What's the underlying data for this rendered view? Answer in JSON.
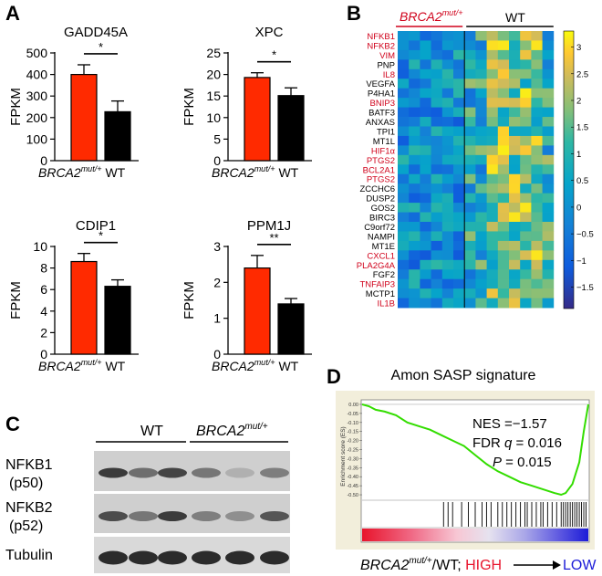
{
  "panels": {
    "A": "A",
    "B": "B",
    "C": "C",
    "D": "D"
  },
  "bar_charts": {
    "ylabel": "FPKM",
    "xlabel_mut_base": "BRCA2",
    "xlabel_mut_sup": "mut/+",
    "xlabel_wt": "WT",
    "colors": {
      "mut": "#ff2a00",
      "wt": "#000000"
    }
  },
  "chart_data": [
    {
      "type": "bar",
      "title": "GADD45A",
      "categories": [
        "BRCA2mut/+",
        "WT"
      ],
      "values": [
        400,
        227
      ],
      "errors": [
        45,
        50
      ],
      "ylim": [
        0,
        500
      ],
      "yticks": [
        0,
        100,
        200,
        300,
        400,
        500
      ],
      "significance": "*",
      "ylabel": "FPKM"
    },
    {
      "type": "bar",
      "title": "XPC",
      "categories": [
        "BRCA2mut/+",
        "WT"
      ],
      "values": [
        19.3,
        15.1
      ],
      "errors": [
        1.1,
        1.8
      ],
      "ylim": [
        0,
        25
      ],
      "yticks": [
        0,
        5,
        10,
        15,
        20,
        25
      ],
      "significance": "*",
      "ylabel": "FPKM"
    },
    {
      "type": "bar",
      "title": "CDIP1",
      "categories": [
        "BRCA2mut/+",
        "WT"
      ],
      "values": [
        8.6,
        6.3
      ],
      "errors": [
        0.75,
        0.6
      ],
      "ylim": [
        0,
        10
      ],
      "yticks": [
        0,
        2,
        4,
        6,
        8,
        10
      ],
      "significance": "*",
      "ylabel": "FPKM"
    },
    {
      "type": "bar",
      "title": "PPM1J",
      "categories": [
        "BRCA2mut/+",
        "WT"
      ],
      "values": [
        2.4,
        1.4
      ],
      "errors": [
        0.35,
        0.15
      ],
      "ylim": [
        0,
        3
      ],
      "yticks": [
        0,
        1,
        2,
        3
      ],
      "significance": "**",
      "ylabel": "FPKM"
    },
    {
      "type": "heatmap",
      "groups": [
        {
          "label_base": "BRCA2",
          "label_sup": "mut/+",
          "color": "#d0021b",
          "columns": 6
        },
        {
          "label": "WT",
          "color": "#000000",
          "columns": 8
        }
      ],
      "rows": [
        "NFKB1",
        "NFKB2",
        "VIM",
        "PNP",
        "IL8",
        "VEGFA",
        "P4HA1",
        "BNIP3",
        "BATF3",
        "ANXAS",
        "TPI1",
        "MT1L",
        "HIF1α",
        "PTGS2",
        "BCL2A1",
        "PTGS2",
        "ZCCHC6",
        "DUSP2",
        "GOS2",
        "BIRC3",
        "C9orf72",
        "NAMPI",
        "MT1E",
        "CXCL1",
        "PLA2G4A",
        "FGF2",
        "TNFAIP3",
        "MCTP1",
        "IL1B"
      ],
      "row_label_colors": [
        "#d0021b",
        "#d0021b",
        "#d0021b",
        "#000000",
        "#d0021b",
        "#000000",
        "#000000",
        "#d0021b",
        "#000000",
        "#000000",
        "#000000",
        "#000000",
        "#d0021b",
        "#d0021b",
        "#d0021b",
        "#d0021b",
        "#000000",
        "#000000",
        "#000000",
        "#000000",
        "#000000",
        "#000000",
        "#000000",
        "#d0021b",
        "#d0021b",
        "#000000",
        "#d0021b",
        "#000000",
        "#d0021b"
      ],
      "colorbar_ticks": [
        3,
        2.5,
        2,
        1.5,
        1,
        0.5,
        0,
        -0.5,
        -1,
        -1.5
      ],
      "colorbar_tick_labels": [
        "3",
        "2.5",
        "2",
        "1.5",
        "1",
        "0.5",
        "0",
        "−0.5",
        "−1",
        "−1.5"
      ],
      "value_range": [
        -1.9,
        3.3
      ]
    },
    {
      "type": "line",
      "title": "Amon SASP signature",
      "ylabel": "Enrichment score (ES)",
      "yticks": [
        "0.00",
        "-0.05",
        "-0.10",
        "-0.15",
        "-0.20",
        "-0.25",
        "-0.30",
        "-0.35",
        "-0.40",
        "-0.45",
        "-0.50"
      ],
      "ylim": [
        -0.52,
        0.01
      ],
      "nes": "NES =−1.57",
      "fdr_prefix": "FDR",
      "fdr_q": "q",
      "fdr_value": " = 0.016",
      "p_label": "P",
      "p_value": " =  0.015",
      "curve_color": "#33dd00",
      "es_points": [
        [
          0,
          0
        ],
        [
          0.03,
          -0.01
        ],
        [
          0.06,
          -0.03
        ],
        [
          0.1,
          -0.04
        ],
        [
          0.15,
          -0.06
        ],
        [
          0.2,
          -0.1
        ],
        [
          0.25,
          -0.12
        ],
        [
          0.3,
          -0.14
        ],
        [
          0.35,
          -0.17
        ],
        [
          0.4,
          -0.2
        ],
        [
          0.45,
          -0.23
        ],
        [
          0.5,
          -0.28
        ],
        [
          0.55,
          -0.33
        ],
        [
          0.6,
          -0.37
        ],
        [
          0.65,
          -0.4
        ],
        [
          0.7,
          -0.43
        ],
        [
          0.75,
          -0.45
        ],
        [
          0.8,
          -0.47
        ],
        [
          0.85,
          -0.49
        ],
        [
          0.88,
          -0.5
        ],
        [
          0.9,
          -0.49
        ],
        [
          0.93,
          -0.44
        ],
        [
          0.96,
          -0.32
        ],
        [
          0.98,
          -0.15
        ],
        [
          1,
          0
        ]
      ],
      "hits": [
        0.36,
        0.38,
        0.4,
        0.44,
        0.47,
        0.5,
        0.53,
        0.55,
        0.57,
        0.6,
        0.62,
        0.64,
        0.66,
        0.68,
        0.7,
        0.72,
        0.73,
        0.75,
        0.77,
        0.79,
        0.8,
        0.82,
        0.84,
        0.86,
        0.88,
        0.89,
        0.9,
        0.91,
        0.92,
        0.93,
        0.94,
        0.95,
        0.96,
        0.97,
        0.98,
        0.99
      ],
      "axis_label_base": "BRCA2",
      "axis_label_sup": "mut/+",
      "axis_label_rest": "/WT; ",
      "high": "HIGH",
      "low": "LOW",
      "high_color": "#e8142c",
      "low_color": "#1c1cd8"
    }
  ],
  "western": {
    "wt_label": "WT",
    "mut_label_base": "BRCA2",
    "mut_label_sup": "mut/+",
    "rows": [
      {
        "name": "NFKB1",
        "sub": "(p50)",
        "intensities": [
          0.85,
          0.55,
          0.8,
          0.5,
          0.15,
          0.45
        ]
      },
      {
        "name": "NFKB2",
        "sub": "(p52)",
        "intensities": [
          0.75,
          0.5,
          0.85,
          0.45,
          0.35,
          0.7
        ]
      },
      {
        "name": "Tubulin",
        "sub": "",
        "intensities": [
          0.95,
          0.95,
          0.95,
          0.95,
          0.95,
          0.95
        ]
      }
    ]
  }
}
